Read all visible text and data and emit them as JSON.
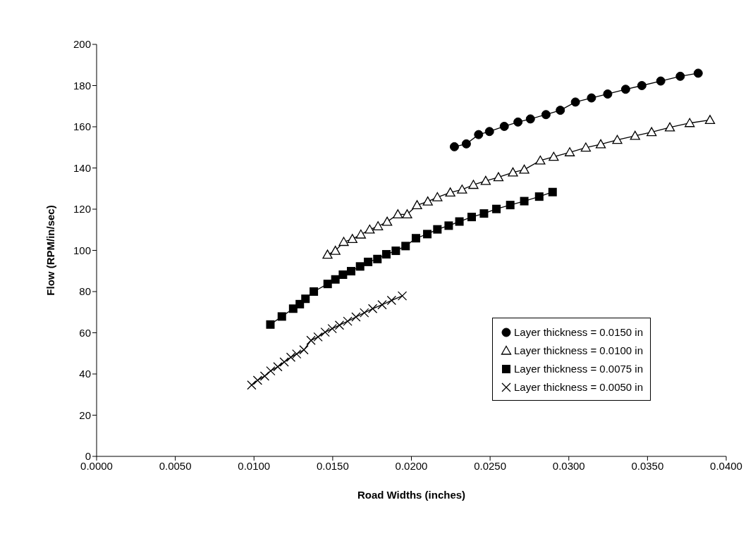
{
  "chart_data": {
    "type": "line",
    "xlabel": "Road Widths (inches)",
    "ylabel": "Flow (RPM/in/sec)",
    "xlim": [
      0,
      0.04
    ],
    "xticks": [
      {
        "value": 0,
        "label": "0.0000"
      },
      {
        "value": 0.005,
        "label": "0.0050"
      },
      {
        "value": 0.01,
        "label": "0.0100"
      },
      {
        "value": 0.015,
        "label": "0.0150"
      },
      {
        "value": 0.02,
        "label": "0.0200"
      },
      {
        "value": 0.025,
        "label": "0.0250"
      },
      {
        "value": 0.03,
        "label": "0.0300"
      },
      {
        "value": 0.035,
        "label": "0.0350"
      },
      {
        "value": 0.04,
        "label": "0.0400"
      }
    ],
    "ylim": [
      0,
      200
    ],
    "yticks": [
      0,
      20,
      40,
      60,
      80,
      100,
      120,
      140,
      160,
      180,
      200
    ],
    "grid": false,
    "legend": "bottom right",
    "line_style": "solid",
    "series": [
      {
        "name": "Layer thickness = 0.0150 in",
        "color": "#000000",
        "marker": "circle",
        "x": [
          0.02273,
          0.02349,
          0.02427,
          0.02496,
          0.0259,
          0.02677,
          0.02756,
          0.02855,
          0.02946,
          0.03042,
          0.03144,
          0.03247,
          0.03361,
          0.03464,
          0.03584,
          0.03708,
          0.03822
        ],
        "values": [
          150.3,
          151.7,
          156.2,
          157.7,
          160.2,
          162.3,
          163.8,
          165.9,
          168.0,
          172.0,
          174.0,
          175.9,
          178.2,
          180.0,
          182.2,
          184.5,
          186.0
        ]
      },
      {
        "name": "Layer thickness = 0.0100 in",
        "color": "#000000",
        "marker": "triangle",
        "x": [
          0.01467,
          0.01517,
          0.0157,
          0.01625,
          0.01679,
          0.01735,
          0.01788,
          0.01846,
          0.01914,
          0.01973,
          0.02036,
          0.02104,
          0.02165,
          0.02247,
          0.02322,
          0.02394,
          0.02472,
          0.02553,
          0.02645,
          0.02717,
          0.02819,
          0.02904,
          0.03006,
          0.03108,
          0.03203,
          0.03308,
          0.03421,
          0.03526,
          0.03642,
          0.03768,
          0.03897
        ],
        "values": [
          97.9,
          99.8,
          104.1,
          105.5,
          107.7,
          110.1,
          111.7,
          113.9,
          117.5,
          117.5,
          121.9,
          123.7,
          125.8,
          128.1,
          129.5,
          131.8,
          133.7,
          135.5,
          137.8,
          139.2,
          143.6,
          145.4,
          147.6,
          149.9,
          151.5,
          153.6,
          155.6,
          157.4,
          159.7,
          161.8,
          163.3
        ]
      },
      {
        "name": "Layer thickness = 0.0075 in",
        "color": "#000000",
        "marker": "square",
        "x": [
          0.01104,
          0.01177,
          0.01249,
          0.01291,
          0.01327,
          0.0138,
          0.01468,
          0.01517,
          0.01565,
          0.01617,
          0.01674,
          0.01725,
          0.01784,
          0.01841,
          0.01901,
          0.01963,
          0.02029,
          0.02101,
          0.02165,
          0.02237,
          0.02305,
          0.02383,
          0.02461,
          0.0254,
          0.02628,
          0.02717,
          0.02812,
          0.02897
        ],
        "values": [
          64.0,
          67.9,
          71.7,
          73.9,
          76.5,
          80.0,
          83.7,
          85.9,
          88.2,
          89.9,
          92.2,
          94.4,
          95.8,
          98.1,
          99.8,
          102.1,
          105.9,
          107.9,
          110.2,
          112.0,
          114.0,
          116.2,
          117.9,
          120.1,
          122.0,
          123.9,
          126.1,
          128.3
        ]
      },
      {
        "name": "Layer thickness = 0.0050 in",
        "color": "#000000",
        "marker": "cross",
        "x": [
          0.00985,
          0.01023,
          0.01068,
          0.01106,
          0.01151,
          0.01192,
          0.01234,
          0.01271,
          0.01317,
          0.01362,
          0.01407,
          0.01452,
          0.01497,
          0.01543,
          0.01595,
          0.01648,
          0.01701,
          0.01754,
          0.01814,
          0.01874,
          0.01942
        ],
        "values": [
          34.6,
          36.9,
          39.0,
          41.5,
          43.5,
          45.8,
          48.1,
          49.7,
          51.7,
          56.3,
          58.0,
          60.3,
          62.0,
          63.7,
          65.6,
          67.7,
          69.7,
          71.7,
          73.6,
          75.7,
          77.9
        ]
      }
    ]
  }
}
